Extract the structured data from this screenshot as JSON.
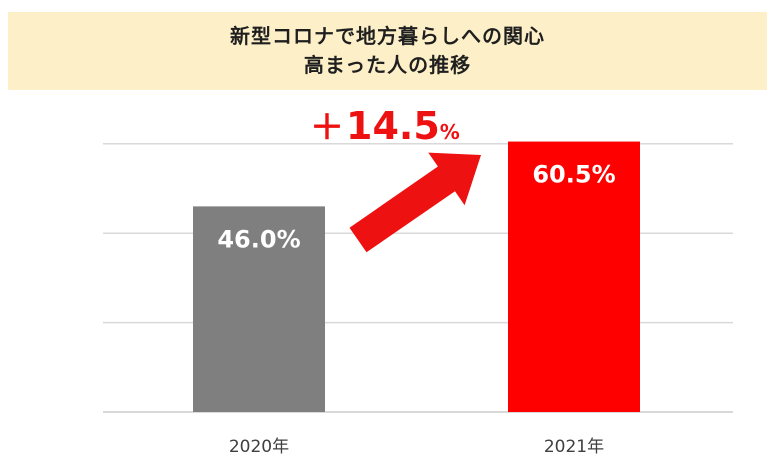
{
  "header": {
    "title_line1": "新型コロナで地方暮らしへの関心",
    "title_line2": "高まった人の推移"
  },
  "annotation": {
    "sign": "＋",
    "value": "14.5",
    "unit": "%"
  },
  "colors": {
    "bar_2020": "#7f7f7f",
    "bar_2021": "#ff0000",
    "accent": "#ee1111",
    "title_bg": "#fdf0c8"
  },
  "chart_data": {
    "type": "bar",
    "categories": [
      "2020年",
      "2021年"
    ],
    "values": [
      46.0,
      60.5
    ],
    "data_labels": [
      "46.0%",
      "60.5%"
    ],
    "ylim": [
      0,
      60
    ],
    "grid": true,
    "title": "新型コロナで地方暮らしへの関心 高まった人の推移",
    "xlabel": "",
    "ylabel": ""
  }
}
